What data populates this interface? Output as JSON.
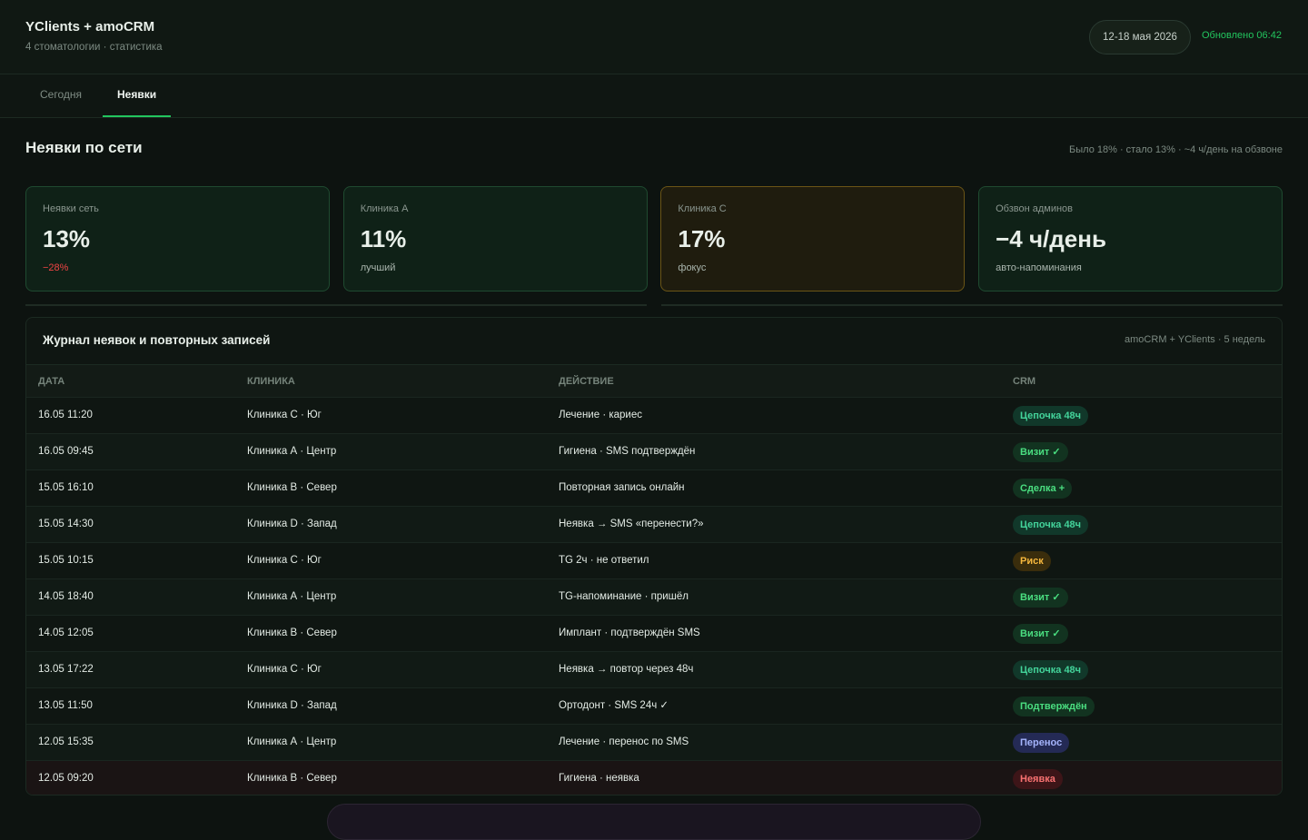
{
  "header": {
    "title": "YClients + amoCRM",
    "subtitle": "4 стоматологии · статистика",
    "period": "12-18 мая 2026",
    "updated": "Обновлено 06:42"
  },
  "tabs": [
    {
      "label": "Сегодня",
      "active": false
    },
    {
      "label": "Неявки",
      "active": true
    }
  ],
  "section": {
    "title": "Неявки по сети",
    "note": "Было 18% · стало 13% · ~4 ч/день на обзвоне"
  },
  "cards": [
    {
      "label": "Неявки сеть",
      "value": "13%",
      "sub": "−28%",
      "tone": "green",
      "sub_tone": "red"
    },
    {
      "label": "Клиника А",
      "value": "11%",
      "sub": "лучший",
      "tone": "green",
      "sub_tone": "muted"
    },
    {
      "label": "Клиника С",
      "value": "17%",
      "sub": "фокус",
      "tone": "amber",
      "sub_tone": "muted"
    },
    {
      "label": "Обзвон админов",
      "value": "−4 ч/день",
      "sub": "авто-напоминания",
      "tone": "green",
      "sub_tone": "muted"
    }
  ],
  "table": {
    "title": "Журнал неявок и повторных записей",
    "note": "amoCRM + YClients · 5 недель",
    "columns": [
      "ДАТА",
      "КЛИНИКА",
      "ДЕЙСТВИЕ",
      "CRM"
    ],
    "rows": [
      {
        "date": "16.05 11:20",
        "clinic": "Клиника С · Юг",
        "action": "Лечение · кариес",
        "crm": "Цепочка 48ч",
        "tone": "teal"
      },
      {
        "date": "16.05 09:45",
        "clinic": "Клиника А · Центр",
        "action": "Гигиена · SMS подтверждён",
        "crm": "Визит ✓",
        "tone": "green"
      },
      {
        "date": "15.05 16:10",
        "clinic": "Клиника В · Север",
        "action": "Повторная запись онлайн",
        "crm": "Сделка +",
        "tone": "green"
      },
      {
        "date": "15.05 14:30",
        "clinic": "Клиника D · Запад",
        "action": "Неявка → SMS «перенести?»",
        "crm": "Цепочка 48ч",
        "tone": "teal"
      },
      {
        "date": "15.05 10:15",
        "clinic": "Клиника С · Юг",
        "action": "TG 2ч · не ответил",
        "crm": "Риск",
        "tone": "amber"
      },
      {
        "date": "14.05 18:40",
        "clinic": "Клиника А · Центр",
        "action": "TG-напоминание · пришёл",
        "crm": "Визит ✓",
        "tone": "green"
      },
      {
        "date": "14.05 12:05",
        "clinic": "Клиника В · Север",
        "action": "Имплант · подтверждён SMS",
        "crm": "Визит ✓",
        "tone": "green"
      },
      {
        "date": "13.05 17:22",
        "clinic": "Клиника С · Юг",
        "action": "Неявка → повтор через 48ч",
        "crm": "Цепочка 48ч",
        "tone": "teal"
      },
      {
        "date": "13.05 11:50",
        "clinic": "Клиника D · Запад",
        "action": "Ортодонт · SMS 24ч ✓",
        "crm": "Подтверждён",
        "tone": "green"
      },
      {
        "date": "12.05 15:35",
        "clinic": "Клиника А · Центр",
        "action": "Лечение · перенос по SMS",
        "crm": "Перенос",
        "tone": "blue"
      },
      {
        "date": "12.05 09:20",
        "clinic": "Клиника В · Север",
        "action": "Гигиена · неявка",
        "crm": "Неявка",
        "tone": "red"
      }
    ]
  }
}
